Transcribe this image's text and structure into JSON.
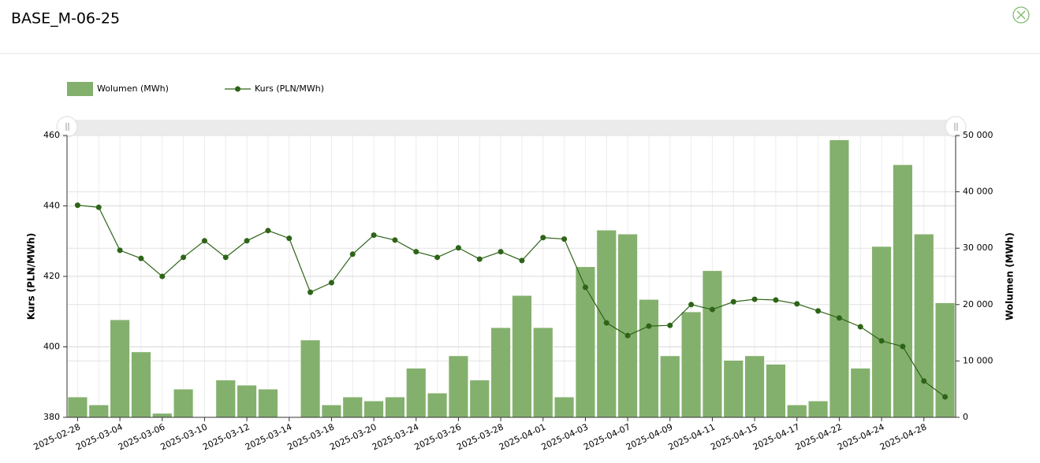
{
  "header": {
    "title": "BASE_M-06-25"
  },
  "chart_data": {
    "type": "combo",
    "categories": [
      "2025-02-28",
      null,
      "2025-03-04",
      null,
      "2025-03-06",
      null,
      "2025-03-10",
      null,
      "2025-03-12",
      null,
      "2025-03-14",
      null,
      "2025-03-18",
      null,
      "2025-03-20",
      null,
      "2025-03-24",
      null,
      "2025-03-26",
      null,
      "2025-03-28",
      null,
      "2025-04-01",
      null,
      "2025-04-03",
      null,
      "2025-04-07",
      null,
      "2025-04-09",
      null,
      "2025-04-11",
      null,
      "2025-04-15",
      null,
      "2025-04-17",
      null,
      "2025-04-22",
      null,
      "2025-04-24",
      null,
      "2025-04-28",
      null
    ],
    "series": [
      {
        "name": "Wolumen (MWh)",
        "type": "bar",
        "axis": "y2",
        "color": "#84b06d",
        "values": [
          3600,
          2200,
          17300,
          11600,
          700,
          5000,
          0,
          6600,
          5700,
          5000,
          0,
          13700,
          2200,
          3600,
          2900,
          3600,
          8700,
          4300,
          10900,
          6600,
          15900,
          21600,
          15900,
          3600,
          26700,
          33200,
          32500,
          20900,
          10900,
          18700,
          26000,
          10100,
          10900,
          9400,
          2200,
          2900,
          49200,
          8700,
          30300,
          44800,
          32500,
          20300
        ]
      },
      {
        "name": "Kurs (PLN/MWh)",
        "type": "line",
        "color": "#2e6418",
        "values": [
          440.2,
          439.6,
          427.4,
          425.1,
          420,
          425.4,
          430.1,
          425.4,
          430.1,
          433,
          430.8,
          415.5,
          418.2,
          426.3,
          431.7,
          430.3,
          427,
          425.4,
          428.1,
          424.9,
          427,
          424.5,
          431,
          430.6,
          416.9,
          406.8,
          403.2,
          405.9,
          406.1,
          412,
          410.6,
          412.8,
          413.5,
          413.3,
          412.2,
          410.2,
          408.2,
          405.7,
          401.7,
          400.1,
          390.3,
          385.8
        ]
      }
    ],
    "ylabel": "Kurs (PLN/MWh)",
    "y2label": "Wolumen (MWh)",
    "ylim": [
      380,
      460
    ],
    "yticks": [
      380,
      400,
      420,
      440,
      460
    ],
    "y2lim": [
      0,
      50000
    ],
    "y2ticks": [
      0,
      {
        "value": 10000,
        "label": "10 000"
      },
      {
        "value": 20000,
        "label": "20 000"
      },
      {
        "value": 30000,
        "label": "30 000"
      },
      {
        "value": 40000,
        "label": "40 000"
      },
      {
        "value": 50000,
        "label": "50 000"
      }
    ],
    "grid": true
  }
}
